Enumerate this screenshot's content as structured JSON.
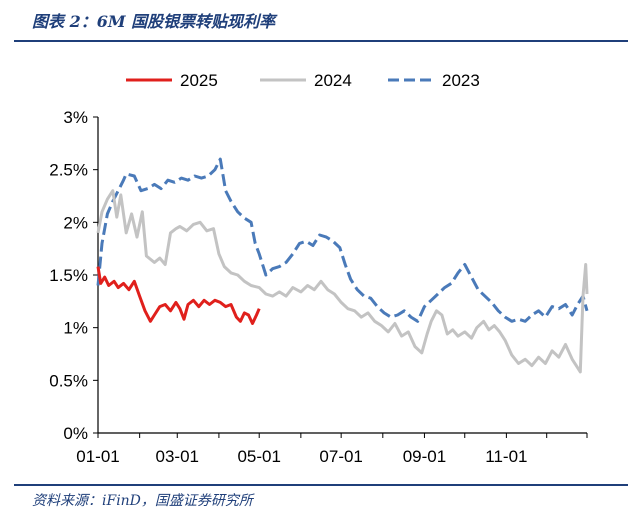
{
  "figure": {
    "title": "图表 2：6M 国股银票转贴现利率",
    "source": "资料来源：iFinD，国盛证券研究所"
  },
  "chart_data": {
    "type": "line",
    "xlabel": "",
    "ylabel": "",
    "xlim": [
      "01-01",
      "12-31"
    ],
    "ylim": [
      0,
      3
    ],
    "x_ticks": [
      "01-01",
      "03-01",
      "05-01",
      "07-01",
      "09-01",
      "11-01"
    ],
    "y_ticks": [
      "0%",
      "0.5%",
      "1%",
      "1.5%",
      "2%",
      "2.5%",
      "3%"
    ],
    "grid": false,
    "legend_position": "top",
    "series": [
      {
        "name": "2025",
        "color": "#e0201c",
        "style": "solid",
        "points": [
          [
            "01-01",
            1.58
          ],
          [
            "01-03",
            1.42
          ],
          [
            "01-06",
            1.48
          ],
          [
            "01-09",
            1.4
          ],
          [
            "01-13",
            1.44
          ],
          [
            "01-16",
            1.38
          ],
          [
            "01-20",
            1.42
          ],
          [
            "01-24",
            1.36
          ],
          [
            "01-28",
            1.44
          ],
          [
            "02-01",
            1.3
          ],
          [
            "02-05",
            1.16
          ],
          [
            "02-09",
            1.06
          ],
          [
            "02-12",
            1.12
          ],
          [
            "02-16",
            1.2
          ],
          [
            "02-20",
            1.22
          ],
          [
            "02-24",
            1.16
          ],
          [
            "02-28",
            1.24
          ],
          [
            "03-03",
            1.18
          ],
          [
            "03-06",
            1.08
          ],
          [
            "03-09",
            1.22
          ],
          [
            "03-13",
            1.26
          ],
          [
            "03-17",
            1.2
          ],
          [
            "03-21",
            1.26
          ],
          [
            "03-25",
            1.22
          ],
          [
            "03-29",
            1.26
          ],
          [
            "04-02",
            1.24
          ],
          [
            "04-06",
            1.2
          ],
          [
            "04-10",
            1.22
          ],
          [
            "04-14",
            1.1
          ],
          [
            "04-17",
            1.06
          ],
          [
            "04-20",
            1.14
          ],
          [
            "04-23",
            1.12
          ],
          [
            "04-26",
            1.04
          ],
          [
            "04-29",
            1.12
          ],
          [
            "05-01",
            1.18
          ]
        ]
      },
      {
        "name": "2024",
        "color": "#c3c3c3",
        "style": "solid",
        "points": [
          [
            "01-01",
            1.9
          ],
          [
            "01-04",
            2.1
          ],
          [
            "01-08",
            2.22
          ],
          [
            "01-12",
            2.3
          ],
          [
            "01-15",
            2.05
          ],
          [
            "01-18",
            2.26
          ],
          [
            "01-22",
            1.9
          ],
          [
            "01-26",
            2.08
          ],
          [
            "01-30",
            1.86
          ],
          [
            "02-03",
            2.1
          ],
          [
            "02-06",
            1.68
          ],
          [
            "02-12",
            1.62
          ],
          [
            "02-16",
            1.66
          ],
          [
            "02-20",
            1.6
          ],
          [
            "02-24",
            1.9
          ],
          [
            "02-28",
            1.94
          ],
          [
            "03-03",
            1.96
          ],
          [
            "03-08",
            1.92
          ],
          [
            "03-13",
            1.98
          ],
          [
            "03-18",
            2.0
          ],
          [
            "03-23",
            1.92
          ],
          [
            "03-28",
            1.94
          ],
          [
            "04-01",
            1.7
          ],
          [
            "04-05",
            1.58
          ],
          [
            "04-10",
            1.52
          ],
          [
            "04-15",
            1.5
          ],
          [
            "04-20",
            1.44
          ],
          [
            "04-25",
            1.4
          ],
          [
            "05-01",
            1.38
          ],
          [
            "05-06",
            1.32
          ],
          [
            "05-11",
            1.3
          ],
          [
            "05-16",
            1.34
          ],
          [
            "05-21",
            1.3
          ],
          [
            "05-26",
            1.38
          ],
          [
            "06-01",
            1.34
          ],
          [
            "06-06",
            1.4
          ],
          [
            "06-11",
            1.36
          ],
          [
            "06-16",
            1.44
          ],
          [
            "06-21",
            1.36
          ],
          [
            "06-26",
            1.32
          ],
          [
            "07-01",
            1.24
          ],
          [
            "07-06",
            1.18
          ],
          [
            "07-11",
            1.16
          ],
          [
            "07-16",
            1.1
          ],
          [
            "07-21",
            1.14
          ],
          [
            "07-26",
            1.06
          ],
          [
            "07-31",
            1.02
          ],
          [
            "08-05",
            0.96
          ],
          [
            "08-10",
            1.04
          ],
          [
            "08-15",
            0.92
          ],
          [
            "08-20",
            0.96
          ],
          [
            "08-25",
            0.82
          ],
          [
            "08-30",
            0.76
          ],
          [
            "09-03",
            0.94
          ],
          [
            "09-06",
            1.06
          ],
          [
            "09-10",
            1.16
          ],
          [
            "09-14",
            1.12
          ],
          [
            "09-18",
            0.94
          ],
          [
            "09-22",
            0.98
          ],
          [
            "09-26",
            0.92
          ],
          [
            "10-01",
            0.96
          ],
          [
            "10-06",
            0.9
          ],
          [
            "10-10",
            1.0
          ],
          [
            "10-15",
            1.06
          ],
          [
            "10-19",
            0.98
          ],
          [
            "10-23",
            1.02
          ],
          [
            "10-27",
            0.96
          ],
          [
            "10-31",
            0.88
          ],
          [
            "11-05",
            0.74
          ],
          [
            "11-10",
            0.66
          ],
          [
            "11-15",
            0.7
          ],
          [
            "11-20",
            0.64
          ],
          [
            "11-25",
            0.72
          ],
          [
            "11-30",
            0.66
          ],
          [
            "12-05",
            0.78
          ],
          [
            "12-10",
            0.72
          ],
          [
            "12-15",
            0.84
          ],
          [
            "12-20",
            0.7
          ],
          [
            "12-24",
            0.62
          ],
          [
            "12-26",
            0.58
          ],
          [
            "12-28",
            1.3
          ],
          [
            "12-30",
            1.6
          ],
          [
            "12-31",
            1.32
          ]
        ]
      },
      {
        "name": "2023",
        "color": "#4a7ab9",
        "style": "dashed",
        "points": [
          [
            "01-01",
            1.4
          ],
          [
            "01-04",
            1.8
          ],
          [
            "01-08",
            2.08
          ],
          [
            "01-12",
            2.2
          ],
          [
            "01-16",
            2.3
          ],
          [
            "01-20",
            2.4
          ],
          [
            "01-22",
            2.46
          ],
          [
            "01-28",
            2.44
          ],
          [
            "02-02",
            2.3
          ],
          [
            "02-07",
            2.32
          ],
          [
            "02-12",
            2.36
          ],
          [
            "02-17",
            2.32
          ],
          [
            "02-22",
            2.4
          ],
          [
            "02-27",
            2.38
          ],
          [
            "03-04",
            2.42
          ],
          [
            "03-09",
            2.4
          ],
          [
            "03-14",
            2.44
          ],
          [
            "03-19",
            2.42
          ],
          [
            "03-24",
            2.44
          ],
          [
            "03-29",
            2.5
          ],
          [
            "04-02",
            2.6
          ],
          [
            "04-06",
            2.3
          ],
          [
            "04-10",
            2.2
          ],
          [
            "04-15",
            2.1
          ],
          [
            "04-20",
            2.04
          ],
          [
            "04-25",
            2.0
          ],
          [
            "04-28",
            1.8
          ],
          [
            "05-01",
            1.7
          ],
          [
            "05-06",
            1.5
          ],
          [
            "05-11",
            1.56
          ],
          [
            "05-16",
            1.58
          ],
          [
            "05-21",
            1.62
          ],
          [
            "05-26",
            1.7
          ],
          [
            "05-31",
            1.8
          ],
          [
            "06-05",
            1.82
          ],
          [
            "06-10",
            1.78
          ],
          [
            "06-15",
            1.88
          ],
          [
            "06-20",
            1.86
          ],
          [
            "06-25",
            1.82
          ],
          [
            "06-30",
            1.76
          ],
          [
            "07-04",
            1.6
          ],
          [
            "07-08",
            1.46
          ],
          [
            "07-13",
            1.36
          ],
          [
            "07-18",
            1.3
          ],
          [
            "07-23",
            1.28
          ],
          [
            "07-28",
            1.2
          ],
          [
            "08-02",
            1.14
          ],
          [
            "08-07",
            1.1
          ],
          [
            "08-12",
            1.12
          ],
          [
            "08-17",
            1.16
          ],
          [
            "08-22",
            1.1
          ],
          [
            "08-27",
            1.06
          ],
          [
            "09-01",
            1.2
          ],
          [
            "09-06",
            1.26
          ],
          [
            "09-11",
            1.32
          ],
          [
            "09-16",
            1.38
          ],
          [
            "09-21",
            1.42
          ],
          [
            "09-26",
            1.52
          ],
          [
            "10-01",
            1.6
          ],
          [
            "10-06",
            1.48
          ],
          [
            "10-11",
            1.36
          ],
          [
            "10-16",
            1.3
          ],
          [
            "10-21",
            1.24
          ],
          [
            "10-26",
            1.16
          ],
          [
            "10-31",
            1.1
          ],
          [
            "11-05",
            1.06
          ],
          [
            "11-10",
            1.08
          ],
          [
            "11-15",
            1.06
          ],
          [
            "11-20",
            1.12
          ],
          [
            "11-25",
            1.16
          ],
          [
            "11-30",
            1.1
          ],
          [
            "12-05",
            1.2
          ],
          [
            "12-10",
            1.18
          ],
          [
            "12-15",
            1.22
          ],
          [
            "12-20",
            1.12
          ],
          [
            "12-24",
            1.22
          ],
          [
            "12-28",
            1.3
          ],
          [
            "12-31",
            1.16
          ]
        ]
      }
    ]
  }
}
